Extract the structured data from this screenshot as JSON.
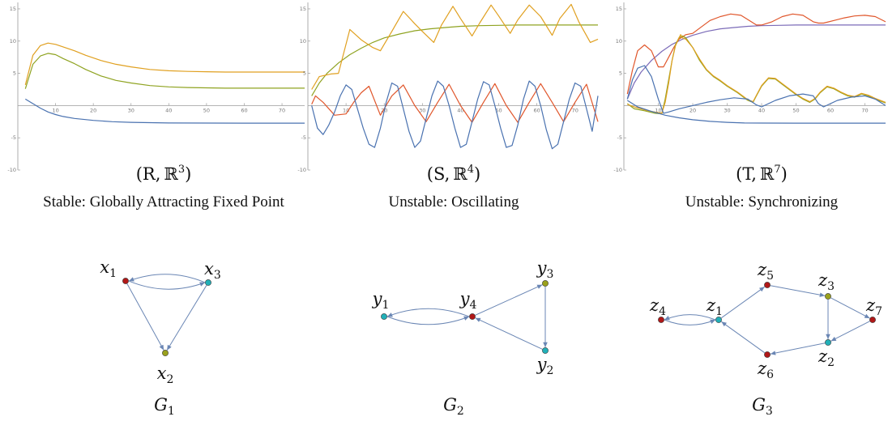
{
  "colors": {
    "blue": "#4a72b0",
    "orange": "#e0a020",
    "olive": "#8fa321",
    "red": "#e0562b",
    "purple": "#7b6bb8",
    "edge": "#6a86b4",
    "node_red": "#b01818",
    "node_teal": "#21b0b8",
    "node_olive": "#9aa11c"
  },
  "chart_data": [
    {
      "type": "line",
      "title_main": "(R,",
      "title_space": "ℝ",
      "title_exp": "3",
      "title_close": ")",
      "caption": "Stable: Globally Attracting Fixed Point",
      "xlim": [
        0,
        76
      ],
      "ylim": [
        -10,
        16
      ],
      "xticks": [
        10,
        20,
        30,
        40,
        50,
        60,
        70
      ],
      "yticks": [
        -10,
        -5,
        5,
        10,
        15
      ],
      "series": [
        {
          "color": "orange",
          "x": [
            2,
            4,
            6,
            8,
            10,
            12,
            15,
            18,
            22,
            26,
            30,
            35,
            40,
            45,
            50,
            55,
            60,
            65,
            70,
            76
          ],
          "y": [
            3.2,
            7.8,
            9.3,
            9.7,
            9.5,
            9.1,
            8.5,
            7.8,
            7.0,
            6.4,
            6.0,
            5.6,
            5.4,
            5.3,
            5.25,
            5.2,
            5.2,
            5.2,
            5.2,
            5.2
          ]
        },
        {
          "color": "olive",
          "x": [
            2,
            4,
            6,
            8,
            10,
            12,
            15,
            18,
            22,
            26,
            30,
            35,
            40,
            45,
            50,
            55,
            60,
            65,
            70,
            76
          ],
          "y": [
            2.6,
            6.4,
            7.7,
            8.1,
            7.9,
            7.3,
            6.5,
            5.6,
            4.6,
            3.9,
            3.5,
            3.1,
            2.9,
            2.8,
            2.75,
            2.7,
            2.7,
            2.7,
            2.7,
            2.7
          ]
        },
        {
          "color": "blue",
          "x": [
            2,
            4,
            6,
            8,
            10,
            12,
            15,
            20,
            25,
            30,
            35,
            40,
            50,
            60,
            70,
            76
          ],
          "y": [
            1.0,
            0.3,
            -0.4,
            -1.0,
            -1.4,
            -1.7,
            -2.0,
            -2.3,
            -2.5,
            -2.6,
            -2.65,
            -2.7,
            -2.72,
            -2.73,
            -2.73,
            -2.73
          ]
        }
      ]
    },
    {
      "type": "line",
      "title_main": "(S,",
      "title_space": "ℝ",
      "title_exp": "4",
      "title_close": ")",
      "caption": "Unstable: Oscillating",
      "xlim": [
        0,
        76
      ],
      "ylim": [
        -10,
        16
      ],
      "xticks": [
        10,
        20,
        30,
        40,
        50,
        60,
        70
      ],
      "yticks": [
        -10,
        -5,
        5,
        10,
        15
      ],
      "series": [
        {
          "color": "olive",
          "x": [
            1,
            3,
            5,
            8,
            11,
            14,
            17,
            20,
            24,
            28,
            32,
            36,
            40,
            45,
            50,
            55,
            60,
            65,
            70,
            76
          ],
          "y": [
            1.5,
            3.5,
            5.0,
            6.6,
            7.9,
            8.9,
            9.8,
            10.5,
            11.1,
            11.6,
            11.9,
            12.1,
            12.3,
            12.4,
            12.45,
            12.5,
            12.5,
            12.5,
            12.5,
            12.5
          ]
        },
        {
          "color": "orange",
          "x": [
            1,
            3,
            6,
            8,
            11,
            14,
            17,
            19,
            22,
            25,
            28,
            30,
            33,
            35,
            38,
            40,
            43,
            45,
            48,
            50,
            53,
            55,
            58,
            61,
            64,
            66,
            69,
            71,
            74,
            76
          ],
          "y": [
            2.5,
            4.5,
            4.9,
            5.0,
            11.8,
            10.2,
            9.0,
            8.5,
            11.5,
            14.6,
            12.7,
            11.5,
            9.8,
            12.5,
            15.4,
            13.5,
            10.8,
            12.8,
            15.6,
            13.9,
            11.2,
            13.3,
            15.6,
            13.8,
            10.9,
            13.5,
            15.7,
            13.0,
            9.8,
            10.3
          ]
        },
        {
          "color": "red",
          "x": [
            1,
            2,
            4,
            7,
            10,
            12,
            14,
            16,
            19,
            22,
            25,
            28,
            31,
            34,
            37,
            40,
            43,
            46,
            49,
            52,
            55,
            58,
            61,
            64,
            67,
            70,
            73,
            76
          ],
          "y": [
            0.2,
            1.5,
            0.5,
            -1.5,
            -1.3,
            0.5,
            2.0,
            3.0,
            -1.5,
            1.5,
            3.2,
            0.0,
            -2.5,
            0.5,
            3.3,
            0.0,
            -2.6,
            0.5,
            3.4,
            0.0,
            -2.6,
            0.5,
            3.4,
            0.5,
            -2.5,
            0.5,
            3.3,
            -2.5
          ]
        },
        {
          "color": "blue",
          "x": [
            1,
            2.5,
            4,
            5.5,
            7,
            8.5,
            10,
            11.5,
            13,
            14.5,
            16,
            17.5,
            19,
            20.5,
            22,
            23.5,
            25,
            26.5,
            28,
            29.5,
            31,
            32.5,
            34,
            35.5,
            37,
            38.5,
            40,
            41.5,
            43,
            44.5,
            46,
            47.5,
            49,
            50.5,
            52,
            53.5,
            55,
            56.5,
            58,
            59.5,
            61,
            62.5,
            64,
            65.5,
            67,
            68.5,
            70,
            71.5,
            73,
            74.5,
            76
          ],
          "y": [
            0.0,
            -3.5,
            -4.5,
            -3.0,
            -1.0,
            1.5,
            3.2,
            2.5,
            -0.5,
            -3.5,
            -6.0,
            -6.5,
            -3.5,
            0.5,
            3.5,
            3.0,
            -0.5,
            -4.0,
            -6.5,
            -5.5,
            -2.0,
            1.5,
            3.8,
            3.0,
            0.0,
            -3.5,
            -6.5,
            -6.0,
            -2.5,
            1.0,
            3.7,
            3.2,
            0.0,
            -3.5,
            -6.5,
            -6.2,
            -3.0,
            1.0,
            3.8,
            3.0,
            0.0,
            -3.8,
            -6.7,
            -6.0,
            -2.5,
            1.0,
            3.5,
            3.0,
            -0.5,
            -4.0,
            1.5
          ]
        }
      ]
    },
    {
      "type": "line",
      "title_main": "(T,",
      "title_space": "ℝ",
      "title_exp": "7",
      "title_close": ")",
      "caption": "Unstable: Synchronizing",
      "xlim": [
        0,
        76
      ],
      "ylim": [
        -10,
        16
      ],
      "xticks": [
        10,
        20,
        30,
        40,
        50,
        60,
        70
      ],
      "yticks": [
        -10,
        -5,
        5,
        10,
        15
      ],
      "series": [
        {
          "color": "purple",
          "x": [
            1,
            3,
            5,
            8,
            11,
            14,
            17,
            20,
            24,
            28,
            32,
            36,
            40,
            45,
            50,
            55,
            60,
            65,
            70,
            76
          ],
          "y": [
            1.0,
            3.5,
            5.2,
            7.0,
            8.4,
            9.5,
            10.3,
            10.9,
            11.5,
            11.9,
            12.1,
            12.3,
            12.4,
            12.45,
            12.5,
            12.5,
            12.5,
            12.5,
            12.5,
            12.5
          ]
        },
        {
          "color": "red",
          "x": [
            1,
            2.5,
            4,
            6,
            8,
            10,
            11.5,
            13,
            14.5,
            16,
            18,
            20,
            22,
            25,
            28,
            31,
            34,
            37,
            38.5,
            40,
            43,
            46,
            49,
            52,
            55,
            56.5,
            58,
            61,
            64,
            67,
            70,
            73,
            76
          ],
          "y": [
            1.8,
            5.5,
            8.5,
            9.4,
            8.5,
            6.0,
            6.0,
            7.5,
            9.0,
            10.3,
            11.0,
            11.2,
            12.0,
            13.2,
            13.8,
            14.2,
            14.0,
            13.0,
            12.5,
            12.5,
            13.0,
            13.8,
            14.2,
            14.0,
            13.0,
            12.8,
            12.8,
            13.2,
            13.6,
            13.9,
            14.0,
            13.8,
            13.0
          ]
        },
        {
          "color": "olive",
          "x": [
            1,
            3,
            6,
            9,
            11,
            12,
            13,
            14,
            15,
            16,
            17,
            18,
            20,
            22,
            24,
            26,
            28,
            30,
            33,
            36,
            37.5,
            38.5,
            40,
            42,
            44,
            46,
            48,
            50,
            52,
            54,
            55.5,
            57,
            59,
            61,
            63,
            65,
            67,
            69,
            71,
            73,
            76
          ],
          "y": [
            0.3,
            -0.5,
            -0.8,
            -1.2,
            -1.3,
            1.0,
            4.0,
            7.0,
            9.5,
            10.5,
            10.8,
            10.5,
            9.0,
            7.0,
            5.5,
            4.5,
            3.8,
            3.0,
            2.0,
            0.8,
            0.5,
            1.5,
            3.0,
            4.2,
            4.1,
            3.3,
            2.5,
            1.7,
            1.0,
            0.5,
            1.0,
            2.0,
            2.9,
            2.6,
            2.0,
            1.5,
            1.3,
            1.8,
            1.5,
            1.0,
            0.4
          ]
        },
        {
          "color": "orange",
          "x": [
            1,
            3,
            5,
            7,
            9,
            11,
            12,
            13,
            14,
            15,
            16,
            16.5,
            17,
            18,
            20,
            22,
            24,
            26,
            28,
            30,
            33,
            36,
            37.5,
            38.5,
            40,
            42,
            44,
            46,
            48,
            50,
            52,
            54,
            55.5,
            57,
            59,
            61,
            63,
            65,
            67,
            69,
            71,
            73,
            76
          ],
          "y": [
            0.2,
            -0.2,
            -0.5,
            -0.8,
            -1.0,
            -1.2,
            0.5,
            3.5,
            7.0,
            9.3,
            10.5,
            11.0,
            10.5,
            10.3,
            9.0,
            7.2,
            5.6,
            4.6,
            3.9,
            3.1,
            2.1,
            0.9,
            0.6,
            1.6,
            3.1,
            4.3,
            4.2,
            3.4,
            2.6,
            1.8,
            1.1,
            0.6,
            1.1,
            2.1,
            3.0,
            2.7,
            2.1,
            1.6,
            1.4,
            1.9,
            1.6,
            1.1,
            0.5
          ]
        },
        {
          "color": "blue",
          "x": [
            1,
            2.5,
            4,
            6,
            8,
            10,
            11.5,
            13,
            16,
            20,
            24,
            28,
            32,
            36,
            38.5,
            40,
            44,
            48,
            52,
            55,
            56.5,
            58,
            62,
            66,
            70,
            73,
            76
          ],
          "y": [
            1.0,
            4.0,
            5.8,
            6.2,
            4.5,
            1.0,
            -1.2,
            -1.0,
            -0.5,
            0.0,
            0.5,
            0.9,
            1.2,
            1.0,
            0.1,
            -0.2,
            0.8,
            1.5,
            1.8,
            1.5,
            0.3,
            -0.2,
            0.8,
            1.3,
            1.5,
            1.0,
            0.0
          ]
        },
        {
          "color": "blue",
          "x": [
            1,
            4,
            8,
            12,
            16,
            20,
            25,
            30,
            35,
            40,
            50,
            60,
            70,
            76
          ],
          "y": [
            0.8,
            -0.2,
            -0.9,
            -1.5,
            -1.9,
            -2.2,
            -2.45,
            -2.6,
            -2.7,
            -2.72,
            -2.73,
            -2.73,
            -2.73,
            -2.73
          ]
        }
      ]
    }
  ],
  "graphs": [
    {
      "label": "G",
      "sub": "1",
      "nodes": [
        {
          "id": "x1",
          "base": "x",
          "sub": "1",
          "color": "node_red"
        },
        {
          "id": "x3",
          "base": "x",
          "sub": "3",
          "color": "node_teal"
        },
        {
          "id": "x2",
          "base": "x",
          "sub": "2",
          "color": "node_olive"
        }
      ],
      "edges": [
        [
          "x1",
          "x3"
        ],
        [
          "x3",
          "x1"
        ],
        [
          "x1",
          "x2"
        ],
        [
          "x3",
          "x2"
        ]
      ]
    },
    {
      "label": "G",
      "sub": "2",
      "nodes": [
        {
          "id": "y1",
          "base": "y",
          "sub": "1",
          "color": "node_teal"
        },
        {
          "id": "y4",
          "base": "y",
          "sub": "4",
          "color": "node_red"
        },
        {
          "id": "y3",
          "base": "y",
          "sub": "3",
          "color": "node_olive"
        },
        {
          "id": "y2",
          "base": "y",
          "sub": "2",
          "color": "node_teal"
        }
      ],
      "edges": [
        [
          "y1",
          "y4"
        ],
        [
          "y4",
          "y1"
        ],
        [
          "y4",
          "y3"
        ],
        [
          "y3",
          "y2"
        ],
        [
          "y2",
          "y4"
        ]
      ]
    },
    {
      "label": "G",
      "sub": "3",
      "nodes": [
        {
          "id": "z4",
          "base": "z",
          "sub": "4",
          "color": "node_red"
        },
        {
          "id": "z1",
          "base": "z",
          "sub": "1",
          "color": "node_teal"
        },
        {
          "id": "z5",
          "base": "z",
          "sub": "5",
          "color": "node_red"
        },
        {
          "id": "z3",
          "base": "z",
          "sub": "3",
          "color": "node_olive"
        },
        {
          "id": "z7",
          "base": "z",
          "sub": "7",
          "color": "node_red"
        },
        {
          "id": "z2",
          "base": "z",
          "sub": "2",
          "color": "node_teal"
        },
        {
          "id": "z6",
          "base": "z",
          "sub": "6",
          "color": "node_red"
        }
      ],
      "edges": [
        [
          "z4",
          "z1"
        ],
        [
          "z1",
          "z4"
        ],
        [
          "z1",
          "z5"
        ],
        [
          "z5",
          "z3"
        ],
        [
          "z3",
          "z7"
        ],
        [
          "z3",
          "z2"
        ],
        [
          "z7",
          "z2"
        ],
        [
          "z2",
          "z6"
        ],
        [
          "z6",
          "z1"
        ]
      ]
    }
  ]
}
